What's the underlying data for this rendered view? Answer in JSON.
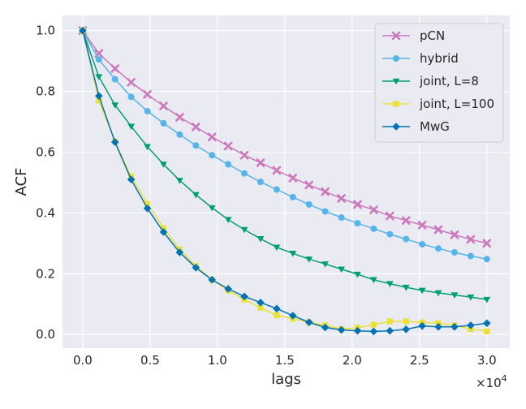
{
  "chart_data": {
    "type": "line",
    "title": "",
    "xlabel": "lags",
    "ylabel": "ACF",
    "x_offset_label": "×10",
    "x_offset_exponent": "4",
    "xlim": [
      -0.15,
      3.17
    ],
    "ylim": [
      -0.045,
      1.05
    ],
    "x_ticks": [
      0.0,
      0.5,
      1.0,
      1.5,
      2.0,
      2.5,
      3.0
    ],
    "x_tick_labels": [
      "0.0",
      "0.5",
      "1.0",
      "1.5",
      "2.0",
      "2.5",
      "3.0"
    ],
    "y_ticks": [
      0.0,
      0.2,
      0.4,
      0.6,
      0.8,
      1.0
    ],
    "y_tick_labels": [
      "0.0",
      "0.2",
      "0.4",
      "0.6",
      "0.8",
      "1.0"
    ],
    "grid": true,
    "legend_position": "top-right",
    "x": [
      0.0,
      0.12,
      0.24,
      0.36,
      0.48,
      0.6,
      0.72,
      0.84,
      0.96,
      1.08,
      1.2,
      1.32,
      1.44,
      1.56,
      1.68,
      1.8,
      1.92,
      2.04,
      2.16,
      2.28,
      2.4,
      2.52,
      2.64,
      2.76,
      2.88,
      3.0
    ],
    "series": [
      {
        "name": "pCN",
        "color": "#cc78bc",
        "marker": "x",
        "values": [
          1.0,
          0.925,
          0.875,
          0.83,
          0.79,
          0.752,
          0.715,
          0.683,
          0.65,
          0.62,
          0.59,
          0.565,
          0.54,
          0.515,
          0.492,
          0.47,
          0.448,
          0.428,
          0.41,
          0.39,
          0.375,
          0.36,
          0.345,
          0.328,
          0.313,
          0.3
        ]
      },
      {
        "name": "hybrid",
        "color": "#56b4e9",
        "marker": "circle",
        "values": [
          1.0,
          0.905,
          0.84,
          0.782,
          0.735,
          0.695,
          0.658,
          0.622,
          0.59,
          0.56,
          0.53,
          0.502,
          0.477,
          0.452,
          0.428,
          0.405,
          0.385,
          0.366,
          0.348,
          0.33,
          0.314,
          0.297,
          0.283,
          0.27,
          0.258,
          0.248
        ]
      },
      {
        "name": "joint, L=8",
        "color": "#029e73",
        "marker": "triangle-down",
        "values": [
          1.0,
          0.848,
          0.755,
          0.685,
          0.618,
          0.56,
          0.507,
          0.46,
          0.417,
          0.378,
          0.345,
          0.315,
          0.287,
          0.267,
          0.248,
          0.232,
          0.215,
          0.198,
          0.18,
          0.167,
          0.155,
          0.145,
          0.137,
          0.13,
          0.123,
          0.115
        ]
      },
      {
        "name": "joint, L=100",
        "color": "#ece133",
        "marker": "square",
        "values": [
          1.0,
          0.77,
          0.635,
          0.52,
          0.43,
          0.35,
          0.28,
          0.225,
          0.18,
          0.145,
          0.115,
          0.088,
          0.063,
          0.052,
          0.04,
          0.03,
          0.018,
          0.022,
          0.032,
          0.043,
          0.043,
          0.04,
          0.037,
          0.03,
          0.018,
          0.01
        ]
      },
      {
        "name": "MwG",
        "color": "#0173b2",
        "marker": "diamond",
        "values": [
          1.0,
          0.785,
          0.633,
          0.51,
          0.415,
          0.337,
          0.27,
          0.22,
          0.18,
          0.15,
          0.125,
          0.105,
          0.085,
          0.062,
          0.04,
          0.023,
          0.015,
          0.012,
          0.01,
          0.012,
          0.017,
          0.028,
          0.025,
          0.025,
          0.03,
          0.037
        ]
      }
    ]
  }
}
